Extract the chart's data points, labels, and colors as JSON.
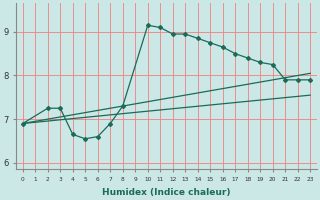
{
  "xlabel": "Humidex (Indice chaleur)",
  "background_color": "#cce8e6",
  "grid_color": "#f08080",
  "line_color": "#1a6b5a",
  "xlim": [
    -0.5,
    23.5
  ],
  "ylim": [
    5.85,
    9.65
  ],
  "xticks": [
    0,
    1,
    2,
    3,
    4,
    5,
    6,
    7,
    8,
    9,
    10,
    11,
    12,
    13,
    14,
    15,
    16,
    17,
    18,
    19,
    20,
    21,
    22,
    23
  ],
  "yticks": [
    6,
    7,
    8,
    9
  ],
  "line1_x": [
    0,
    23
  ],
  "line1_y": [
    6.9,
    7.55
  ],
  "line2_x": [
    0,
    23
  ],
  "line2_y": [
    6.9,
    8.05
  ],
  "curve_x": [
    0,
    2,
    3,
    4,
    5,
    6,
    7,
    8,
    10,
    11,
    12,
    13,
    14,
    15,
    16,
    17,
    18,
    19,
    20,
    21,
    22,
    23
  ],
  "curve_y": [
    6.9,
    7.25,
    7.25,
    6.65,
    6.55,
    6.6,
    6.9,
    7.3,
    9.15,
    9.1,
    8.95,
    8.95,
    8.85,
    8.75,
    8.65,
    8.5,
    8.4,
    8.3,
    8.25,
    7.9,
    7.9,
    7.9
  ]
}
